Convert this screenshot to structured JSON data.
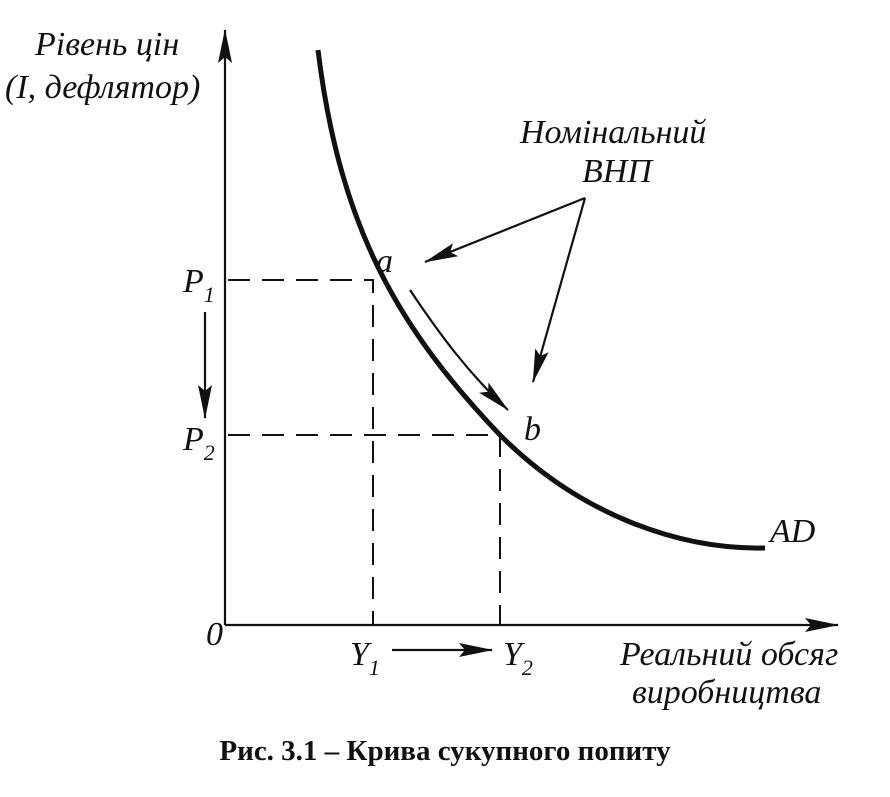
{
  "figure": {
    "y_axis_label": [
      "Рівень цін",
      "(I, дефлятор)"
    ],
    "x_axis_label": [
      "Реальний обсяг",
      "виробництва"
    ],
    "origin": "0",
    "curve_label": "AD",
    "points": [
      {
        "label": "a"
      },
      {
        "label": "b"
      }
    ],
    "price_levels": [
      {
        "text": "P",
        "sub": "1"
      },
      {
        "text": "P",
        "sub": "2"
      }
    ],
    "outputs": [
      {
        "text": "Y",
        "sub": "1"
      },
      {
        "text": "Y",
        "sub": "2"
      }
    ],
    "annotation": [
      "Номінальний",
      "ВНП"
    ],
    "caption": "Рис. 3.1 – Крива сукупного попиту"
  }
}
